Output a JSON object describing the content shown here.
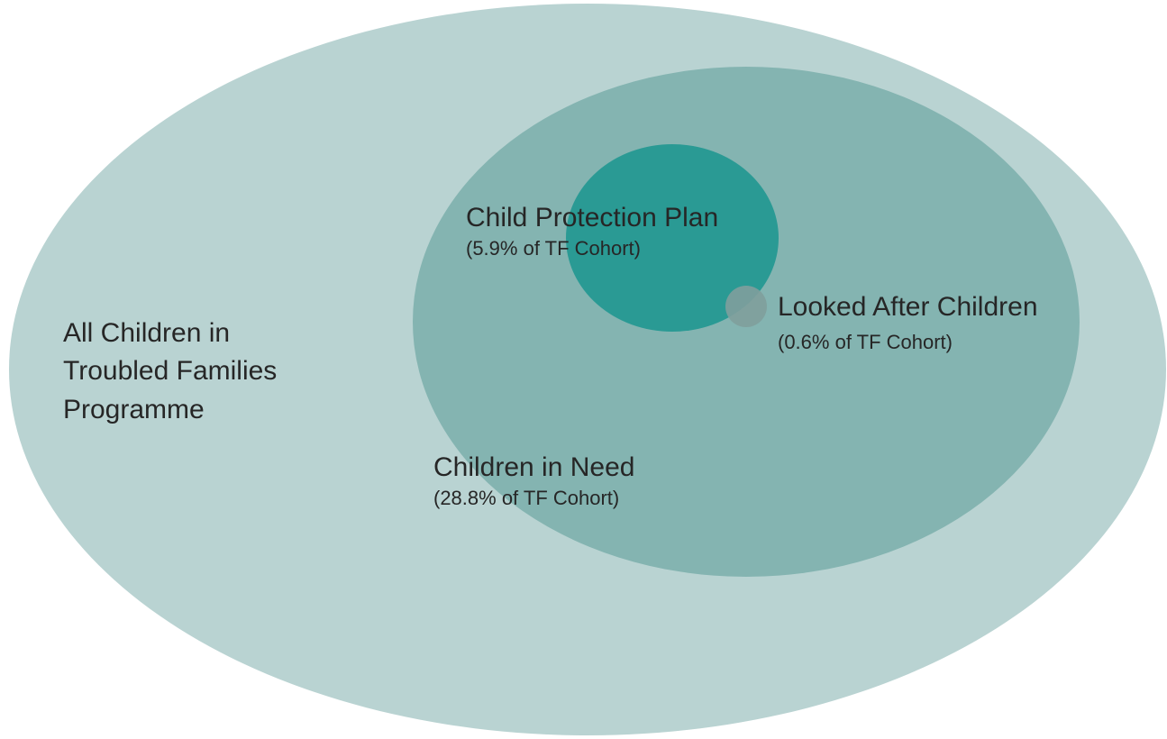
{
  "nodes": [
    {
      "label": [
        "All Children in",
        "Troubled Families",
        "Programme"
      ]
    },
    {
      "label": [
        "Children in Need"
      ],
      "sublabel": "(28.8% of TF Cohort)"
    },
    {
      "label": [
        "Child Protection Plan"
      ],
      "sublabel": "(5.9% of TF Cohort)"
    },
    {
      "label": [
        "Looked After Children"
      ],
      "sublabel": "(0.6% of TF Cohort)"
    }
  ]
}
